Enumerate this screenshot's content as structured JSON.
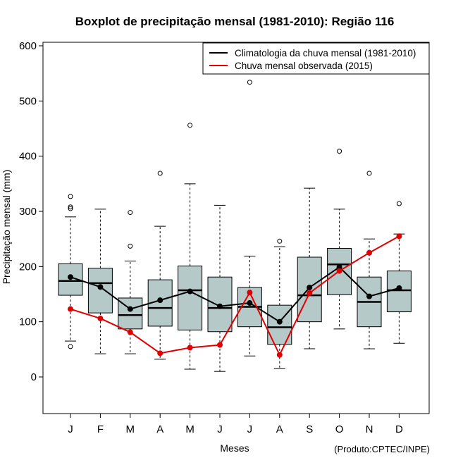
{
  "chart_data": {
    "type": "boxplot",
    "title": "Boxplot de precipitação mensal (1981-2010): Região 116",
    "xlabel": "Meses",
    "ylabel": "Precipitação mensal (mm)",
    "ylim": [
      -65,
      610
    ],
    "yticks": [
      0,
      100,
      200,
      300,
      400,
      500,
      600
    ],
    "credit": "(Produto:CPTEC/INPE)",
    "categories": [
      "J",
      "F",
      "M",
      "A",
      "M",
      "J",
      "J",
      "A",
      "S",
      "O",
      "N",
      "D"
    ],
    "boxes": [
      {
        "whisker_low": 65,
        "q1": 148,
        "median": 174,
        "q3": 205,
        "whisker_high": 290,
        "outliers": [
          55,
          305,
          308,
          327
        ]
      },
      {
        "whisker_low": 42,
        "q1": 116,
        "median": 170,
        "q3": 197,
        "whisker_high": 304,
        "outliers": []
      },
      {
        "whisker_low": 42,
        "q1": 87,
        "median": 112,
        "q3": 143,
        "whisker_high": 210,
        "outliers": [
          237,
          298
        ]
      },
      {
        "whisker_low": 32,
        "q1": 92,
        "median": 125,
        "q3": 176,
        "whisker_high": 273,
        "outliers": [
          369
        ]
      },
      {
        "whisker_low": 14,
        "q1": 85,
        "median": 157,
        "q3": 201,
        "whisker_high": 350,
        "outliers": [
          456
        ]
      },
      {
        "whisker_low": 10,
        "q1": 82,
        "median": 125,
        "q3": 181,
        "whisker_high": 311,
        "outliers": []
      },
      {
        "whisker_low": 38,
        "q1": 91,
        "median": 127,
        "q3": 162,
        "whisker_high": 219,
        "outliers": [
          534
        ]
      },
      {
        "whisker_low": 15,
        "q1": 59,
        "median": 90,
        "q3": 130,
        "whisker_high": 236,
        "outliers": [
          246
        ]
      },
      {
        "whisker_low": 51,
        "q1": 100,
        "median": 148,
        "q3": 217,
        "whisker_high": 342,
        "outliers": []
      },
      {
        "whisker_low": 87,
        "q1": 149,
        "median": 204,
        "q3": 233,
        "whisker_high": 304,
        "outliers": [
          409
        ]
      },
      {
        "whisker_low": 51,
        "q1": 91,
        "median": 136,
        "q3": 181,
        "whisker_high": 250,
        "outliers": [
          369
        ]
      },
      {
        "whisker_low": 61,
        "q1": 118,
        "median": 157,
        "q3": 192,
        "whisker_high": 259,
        "outliers": [
          314
        ]
      }
    ],
    "series": [
      {
        "name": "Climatologia da chuva mensal (1981-2010)",
        "color": "#000000",
        "values": [
          181,
          163,
          123,
          139,
          155,
          128,
          134,
          100,
          162,
          199,
          146,
          161
        ]
      },
      {
        "name": "Chuva mensal observada (2015)",
        "color": "#e00000",
        "values": [
          123,
          106,
          81,
          43,
          53,
          58,
          153,
          40,
          152,
          192,
          225,
          255
        ]
      }
    ],
    "legend_position": "top-right",
    "box_color": "#b4c9c8"
  }
}
